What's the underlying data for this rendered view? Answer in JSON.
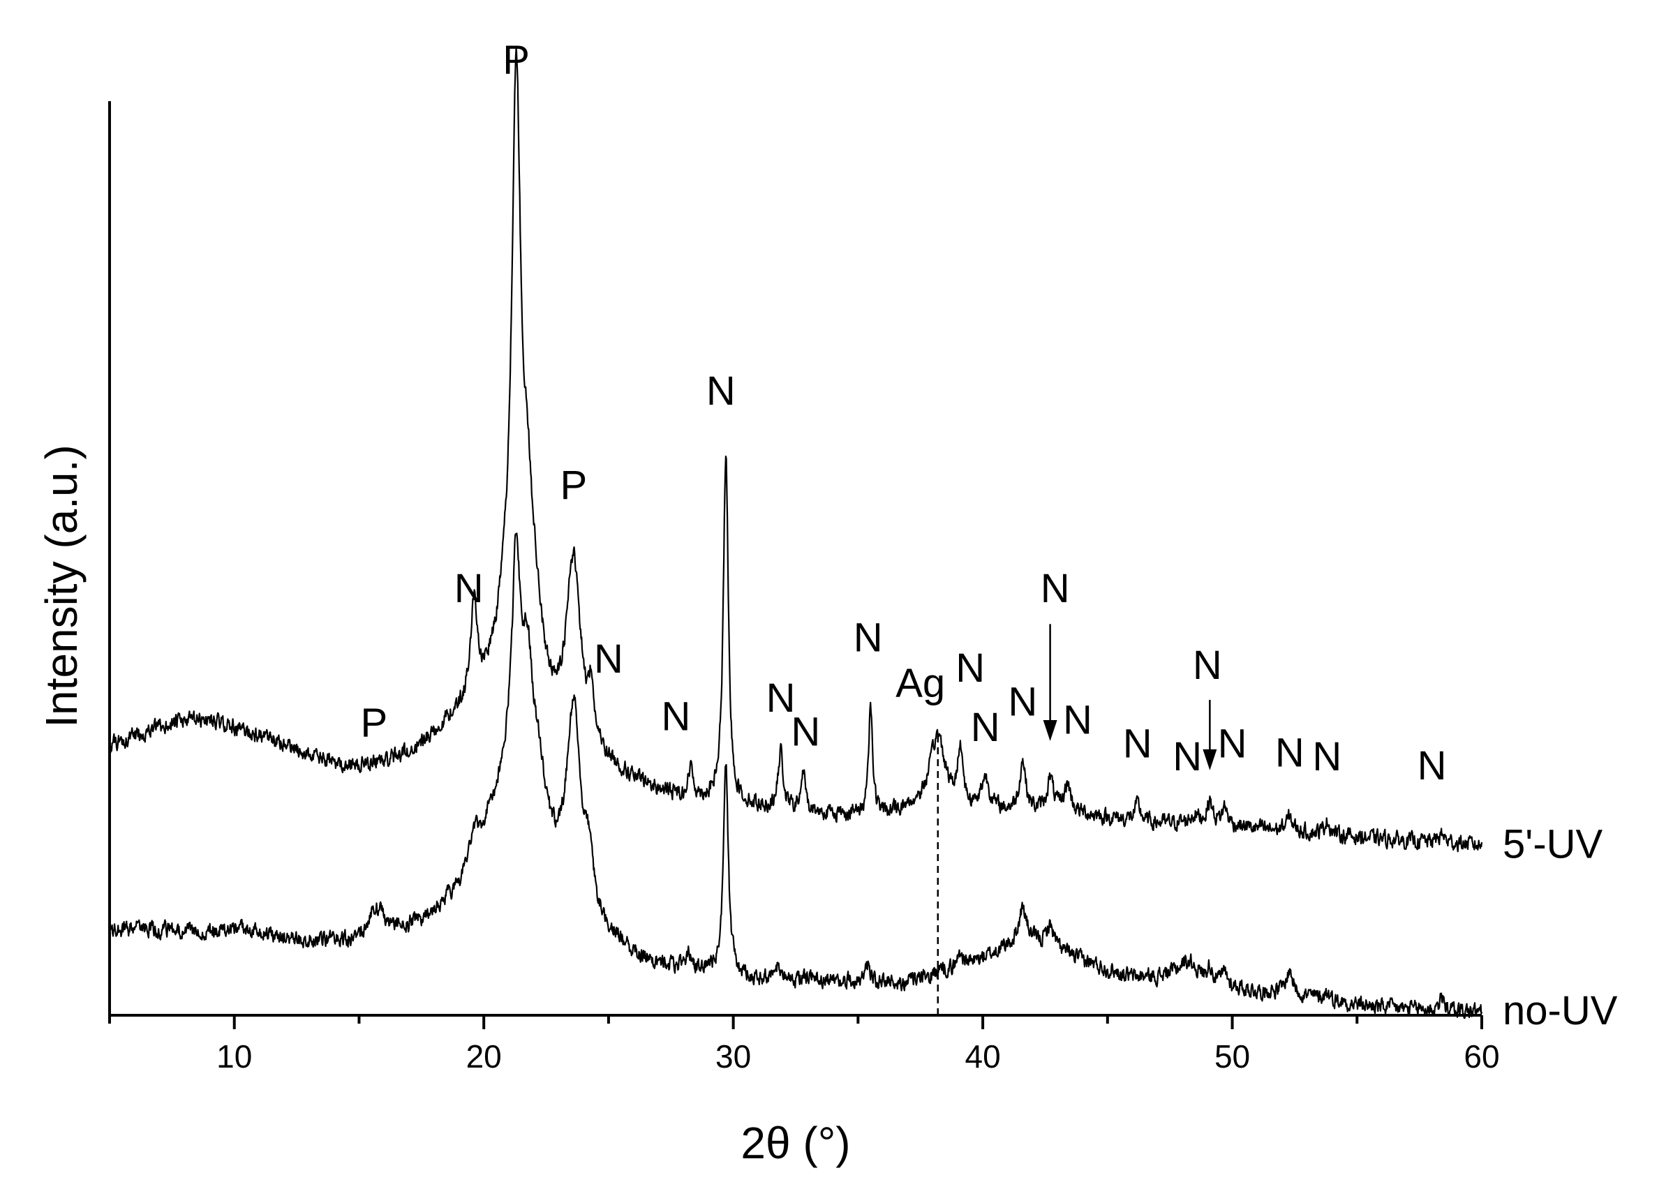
{
  "chart_data": {
    "type": "line",
    "title": "",
    "xlabel": "2θ (°)",
    "ylabel": "Intensity (a.u.)",
    "xlim": [
      5,
      60
    ],
    "ylim": [
      0,
      100
    ],
    "x_ticks": [
      10,
      20,
      30,
      40,
      50,
      60
    ],
    "x_minor_step": 5,
    "grid": false,
    "legend": "none",
    "line_color": "#000000",
    "label_color": "#000000",
    "ag_color": "#ff0000",
    "series": [
      {
        "name": "5'-UV",
        "baseline": [
          [
            5,
            29.5
          ],
          [
            6,
            30.5
          ],
          [
            7,
            31.5
          ],
          [
            8,
            32.2
          ],
          [
            9,
            32.3
          ],
          [
            10,
            31.5
          ],
          [
            11,
            30.5
          ],
          [
            12,
            29.5
          ],
          [
            13,
            28.4
          ],
          [
            14,
            27.4
          ],
          [
            15,
            27.0
          ],
          [
            16,
            27.4
          ],
          [
            17,
            28.5
          ],
          [
            18,
            30.5
          ],
          [
            19,
            33.0
          ],
          [
            20,
            35.5
          ],
          [
            21,
            38.5
          ],
          [
            22,
            36.0
          ],
          [
            23,
            30.5
          ],
          [
            24,
            28.5
          ],
          [
            25,
            27.0
          ],
          [
            26,
            25.5
          ],
          [
            27,
            24.4
          ],
          [
            28,
            23.8
          ],
          [
            29,
            23.4
          ],
          [
            30,
            23.0
          ],
          [
            31,
            22.7
          ],
          [
            32,
            22.4
          ],
          [
            33,
            22.2
          ],
          [
            34,
            22.0
          ],
          [
            35,
            21.8
          ],
          [
            36,
            21.8
          ],
          [
            37,
            22.5
          ],
          [
            38,
            23.2
          ],
          [
            39,
            22.5
          ],
          [
            40,
            22.3
          ],
          [
            41,
            22.2
          ],
          [
            42,
            22.2
          ],
          [
            43,
            22.3
          ],
          [
            44,
            22.0
          ],
          [
            45,
            21.6
          ],
          [
            46,
            21.2
          ],
          [
            47,
            21.0
          ],
          [
            48,
            21.0
          ],
          [
            49,
            21.2
          ],
          [
            50,
            20.8
          ],
          [
            51,
            20.4
          ],
          [
            52,
            20.2
          ],
          [
            53,
            20.0
          ],
          [
            54,
            19.8
          ],
          [
            55,
            19.5
          ],
          [
            56,
            19.3
          ],
          [
            57,
            19.1
          ],
          [
            58,
            19.0
          ],
          [
            59,
            18.8
          ],
          [
            60,
            18.6
          ]
        ],
        "peaks": [
          [
            15.6,
            0.4,
            0.8
          ],
          [
            19.6,
            10.0,
            0.15
          ],
          [
            20.8,
            3.0,
            0.3
          ],
          [
            21.3,
            62.0,
            0.22
          ],
          [
            21.75,
            14.0,
            0.25
          ],
          [
            22.1,
            5.0,
            0.3
          ],
          [
            23.6,
            20.0,
            0.35
          ],
          [
            24.3,
            5.5,
            0.12
          ],
          [
            28.3,
            3.0,
            0.12
          ],
          [
            29.7,
            38.0,
            0.12
          ],
          [
            31.9,
            6.2,
            0.12
          ],
          [
            32.8,
            4.2,
            0.1
          ],
          [
            35.5,
            12.0,
            0.1
          ],
          [
            38.2,
            7.5,
            0.35
          ],
          [
            39.1,
            6.5,
            0.12
          ],
          [
            40.1,
            3.5,
            0.2
          ],
          [
            41.6,
            5.5,
            0.15
          ],
          [
            42.7,
            3.5,
            0.15
          ],
          [
            43.4,
            3.0,
            0.15
          ],
          [
            46.2,
            1.8,
            0.15
          ],
          [
            48.5,
            0.8,
            0.2
          ],
          [
            49.1,
            2.2,
            0.12
          ],
          [
            49.7,
            1.8,
            0.12
          ],
          [
            52.3,
            1.5,
            0.15
          ],
          [
            53.8,
            1.5,
            0.12
          ],
          [
            58.4,
            0.8,
            0.15
          ]
        ],
        "label": "5'-UV"
      },
      {
        "name": "no-UV",
        "baseline": [
          [
            5,
            9.2
          ],
          [
            6,
            9.5
          ],
          [
            7,
            9.3
          ],
          [
            8,
            9.3
          ],
          [
            9,
            9.2
          ],
          [
            10,
            9.4
          ],
          [
            11,
            9.0
          ],
          [
            12,
            8.4
          ],
          [
            13,
            8.1
          ],
          [
            14,
            8.0
          ],
          [
            15,
            8.1
          ],
          [
            16,
            8.5
          ],
          [
            17,
            9.6
          ],
          [
            18,
            11.2
          ],
          [
            19,
            14.0
          ],
          [
            20,
            20.0
          ],
          [
            21,
            26.0
          ],
          [
            22,
            22.0
          ],
          [
            23,
            14.5
          ],
          [
            24,
            11.0
          ],
          [
            25,
            8.5
          ],
          [
            26,
            6.5
          ],
          [
            27,
            5.5
          ],
          [
            28,
            5.0
          ],
          [
            29,
            4.6
          ],
          [
            30,
            4.2
          ],
          [
            31,
            4.0
          ],
          [
            32,
            4.0
          ],
          [
            33,
            3.9
          ],
          [
            34,
            3.8
          ],
          [
            35,
            3.6
          ],
          [
            36,
            3.5
          ],
          [
            37,
            3.6
          ],
          [
            38,
            4.0
          ],
          [
            39,
            5.0
          ],
          [
            40,
            6.2
          ],
          [
            41,
            7.4
          ],
          [
            42,
            7.8
          ],
          [
            43,
            7.0
          ],
          [
            44,
            6.0
          ],
          [
            45,
            5.0
          ],
          [
            46,
            4.2
          ],
          [
            47,
            4.2
          ],
          [
            48,
            5.0
          ],
          [
            49,
            4.0
          ],
          [
            50,
            3.2
          ],
          [
            51,
            2.6
          ],
          [
            52,
            2.6
          ],
          [
            53,
            2.1
          ],
          [
            54,
            1.6
          ],
          [
            55,
            1.2
          ],
          [
            56,
            0.9
          ],
          [
            57,
            0.7
          ],
          [
            58,
            0.6
          ],
          [
            59,
            0.5
          ],
          [
            60,
            0.4
          ]
        ],
        "peaks": [
          [
            15.7,
            3.5,
            0.4
          ],
          [
            19.6,
            2.5,
            0.2
          ],
          [
            21.3,
            24.0,
            0.2
          ],
          [
            21.75,
            14.0,
            0.25
          ],
          [
            22.2,
            5.0,
            0.3
          ],
          [
            23.6,
            21.0,
            0.35
          ],
          [
            24.2,
            4.5,
            0.2
          ],
          [
            28.2,
            1.6,
            0.15
          ],
          [
            29.7,
            23.0,
            0.12
          ],
          [
            31.8,
            1.2,
            0.1
          ],
          [
            35.4,
            2.4,
            0.1
          ],
          [
            38.3,
            0.8,
            0.3
          ],
          [
            39.1,
            1.6,
            0.15
          ],
          [
            41.6,
            4.0,
            0.2
          ],
          [
            42.7,
            2.5,
            0.2
          ],
          [
            48.3,
            1.2,
            0.3
          ],
          [
            49.1,
            1.4,
            0.12
          ],
          [
            49.7,
            1.2,
            0.12
          ],
          [
            52.3,
            2.4,
            0.15
          ],
          [
            53.8,
            0.8,
            0.15
          ],
          [
            58.4,
            1.2,
            0.15
          ]
        ],
        "label": "no-UV"
      }
    ],
    "annotations": [
      {
        "text": "P",
        "x": 21.3,
        "y": 103.0,
        "color": "#000000"
      },
      {
        "text": "P",
        "x": 23.6,
        "y": 56.5,
        "color": "#000000"
      },
      {
        "text": "P",
        "x": 15.6,
        "y": 30.5,
        "color": "#000000"
      },
      {
        "text": "N",
        "x": 19.4,
        "y": 45.2,
        "color": "#000000"
      },
      {
        "text": "N",
        "x": 25.0,
        "y": 37.5,
        "color": "#000000"
      },
      {
        "text": "N",
        "x": 29.5,
        "y": 66.8,
        "color": "#000000"
      },
      {
        "text": "N",
        "x": 27.7,
        "y": 31.2,
        "color": "#000000"
      },
      {
        "text": "N",
        "x": 31.9,
        "y": 33.2,
        "color": "#000000"
      },
      {
        "text": "N",
        "x": 32.9,
        "y": 29.5,
        "color": "#000000"
      },
      {
        "text": "N",
        "x": 35.4,
        "y": 39.8,
        "color": "#000000"
      },
      {
        "text": "Ag",
        "x": 37.5,
        "y": 34.8,
        "color": "#ff0000"
      },
      {
        "text": "N",
        "x": 39.5,
        "y": 36.5,
        "color": "#000000"
      },
      {
        "text": "N",
        "x": 40.1,
        "y": 30.0,
        "color": "#000000"
      },
      {
        "text": "N",
        "x": 41.6,
        "y": 32.8,
        "color": "#000000"
      },
      {
        "text": "N",
        "x": 42.9,
        "y": 45.2,
        "color": "#000000"
      },
      {
        "text": "N",
        "x": 43.8,
        "y": 30.8,
        "color": "#000000"
      },
      {
        "text": "N",
        "x": 46.2,
        "y": 28.2,
        "color": "#000000"
      },
      {
        "text": "N",
        "x": 48.2,
        "y": 26.8,
        "color": "#000000"
      },
      {
        "text": "N",
        "x": 49.0,
        "y": 36.8,
        "color": "#000000"
      },
      {
        "text": "N",
        "x": 50.0,
        "y": 28.2,
        "color": "#000000"
      },
      {
        "text": "N",
        "x": 52.3,
        "y": 27.2,
        "color": "#000000"
      },
      {
        "text": "N",
        "x": 53.8,
        "y": 26.8,
        "color": "#000000"
      },
      {
        "text": "N",
        "x": 58.0,
        "y": 25.8,
        "color": "#000000"
      }
    ],
    "markers": {
      "ag_dashed_line": {
        "x": 38.2,
        "y_from": 0.0,
        "y_to": 30.8
      },
      "arrows": [
        {
          "x": 42.7,
          "y_from": 42.8,
          "y_to": 30.0
        },
        {
          "x": 49.1,
          "y_from": 34.5,
          "y_to": 26.8
        }
      ]
    }
  }
}
